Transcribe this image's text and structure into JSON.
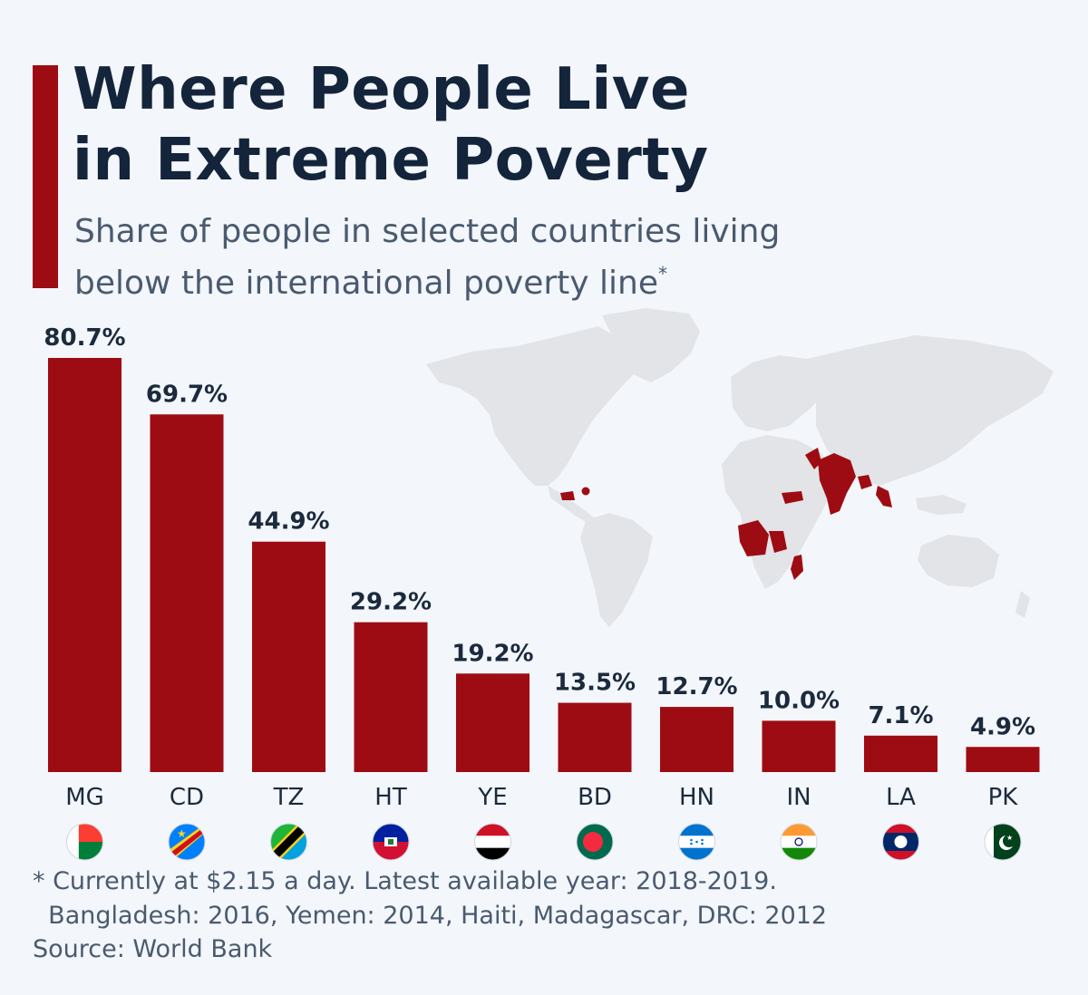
{
  "header": {
    "title_line1": "Where People Live",
    "title_line2": "in Extreme Poverty",
    "subtitle_line1": "Share of people in selected countries living",
    "subtitle_line2": "below the international poverty line",
    "subtitle_mark": "*"
  },
  "footer": {
    "note_line1": "* Currently at $2.15 a day. Latest available year: 2018-2019.",
    "note_line2": "  Bangladesh: 2016, Yemen: 2014, Haiti, Madagascar, DRC: 2012",
    "source": "Source: World Bank"
  },
  "colors": {
    "bar": "#9e0c13",
    "map_land": "#e2e4e7",
    "map_highlight": "#9e0c13"
  },
  "icons": {
    "flags": [
      "madagascar-flag-icon",
      "dr-congo-flag-icon",
      "tanzania-flag-icon",
      "haiti-flag-icon",
      "yemen-flag-icon",
      "bangladesh-flag-icon",
      "honduras-flag-icon",
      "india-flag-icon",
      "laos-flag-icon",
      "pakistan-flag-icon"
    ],
    "map": "world-map-icon"
  },
  "chart_data": {
    "type": "bar",
    "categories": [
      "MG",
      "CD",
      "TZ",
      "HT",
      "YE",
      "BD",
      "HN",
      "IN",
      "LA",
      "PK"
    ],
    "values": [
      80.7,
      69.7,
      44.9,
      29.2,
      19.2,
      13.5,
      12.7,
      10.0,
      7.1,
      4.9
    ],
    "data_labels": [
      "80.7%",
      "69.7%",
      "44.9%",
      "29.2%",
      "19.2%",
      "13.5%",
      "12.7%",
      "10.0%",
      "7.1%",
      "4.9%"
    ],
    "title": "Where People Live in Extreme Poverty",
    "subtitle": "Share of people in selected countries living below the international poverty line*",
    "xlabel": "",
    "ylabel": "",
    "ylim": [
      0,
      80.7
    ],
    "grid": false,
    "legend": "none"
  }
}
